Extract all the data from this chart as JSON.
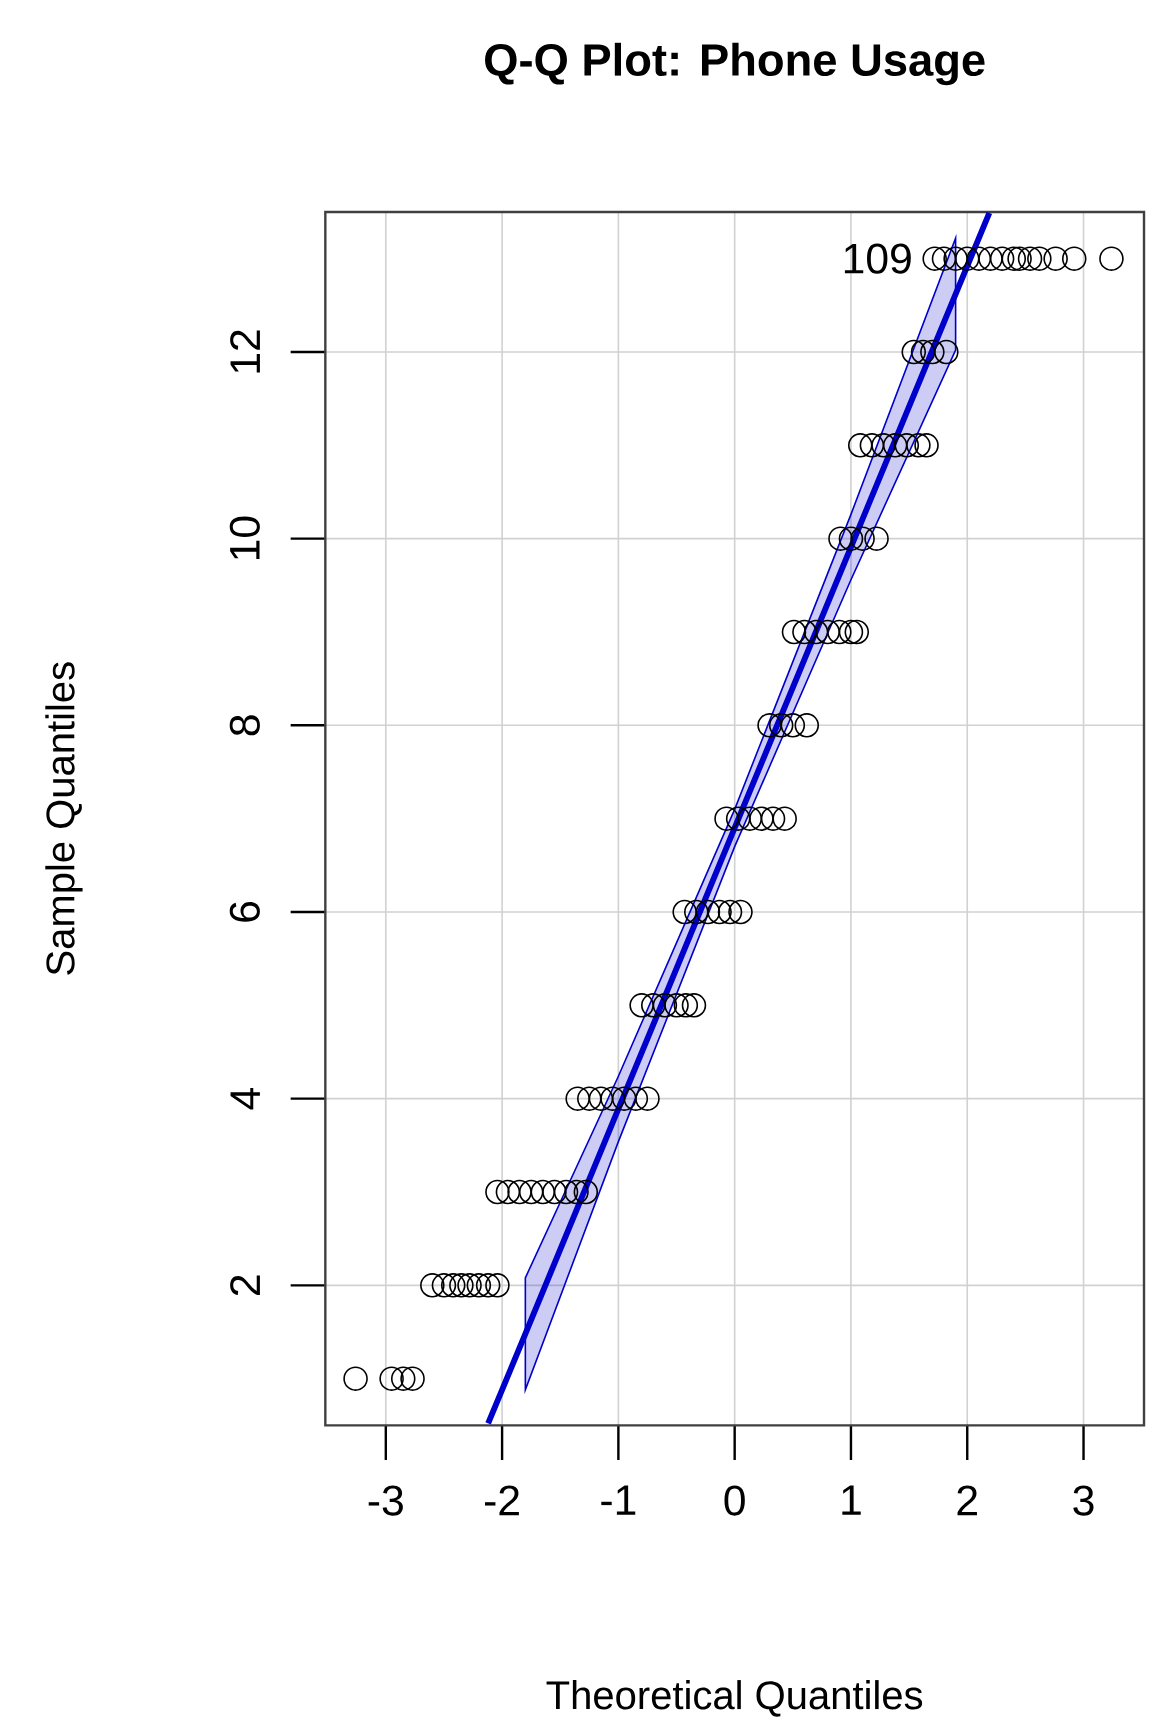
{
  "chart_data": {
    "type": "scatter",
    "title": "Q-Q Plot: Phone Usage",
    "xlabel": "Theoretical Quantiles",
    "ylabel": "Sample Quantiles",
    "xlim": [
      -3.52,
      3.52
    ],
    "ylim": [
      0.5,
      13.5
    ],
    "xticks": [
      -3,
      -2,
      -1,
      0,
      1,
      2,
      3
    ],
    "yticks": [
      2,
      4,
      6,
      8,
      10,
      12
    ],
    "grid": true,
    "annotations": [
      {
        "text": "109",
        "x": 1.72,
        "y": 13
      }
    ],
    "series": [
      {
        "marker": "circle",
        "color": "#000000",
        "x": [
          -3.26,
          -2.95,
          -2.85,
          -2.77,
          -2.6,
          -2.5,
          -2.42,
          -2.35,
          -2.28,
          -2.2,
          -2.12,
          -2.04,
          -2.04,
          -1.95,
          -1.85,
          -1.75,
          -1.65,
          -1.55,
          -1.45,
          -1.36,
          -1.28,
          -1.35,
          -1.25,
          -1.15,
          -1.05,
          -0.95,
          -0.85,
          -0.75,
          -0.8,
          -0.7,
          -0.6,
          -0.5,
          -0.42,
          -0.35,
          -0.43,
          -0.33,
          -0.23,
          -0.13,
          -0.04,
          0.05,
          -0.07,
          0.03,
          0.13,
          0.23,
          0.33,
          0.43,
          0.3,
          0.4,
          0.5,
          0.62,
          0.51,
          0.6,
          0.7,
          0.8,
          0.9,
          1.0,
          1.05,
          0.91,
          1.0,
          1.1,
          1.22,
          1.08,
          1.18,
          1.28,
          1.38,
          1.48,
          1.58,
          1.65,
          1.54,
          1.62,
          1.7,
          1.82,
          1.72,
          1.8,
          1.9,
          2.0,
          2.1,
          2.2,
          2.3,
          2.4,
          2.45,
          2.54,
          2.62,
          2.76,
          2.92,
          3.24
        ],
        "values": [
          1,
          1,
          1,
          1,
          2,
          2,
          2,
          2,
          2,
          2,
          2,
          2,
          3,
          3,
          3,
          3,
          3,
          3,
          3,
          3,
          3,
          4,
          4,
          4,
          4,
          4,
          4,
          4,
          5,
          5,
          5,
          5,
          5,
          5,
          6,
          6,
          6,
          6,
          6,
          6,
          7,
          7,
          7,
          7,
          7,
          7,
          8,
          8,
          8,
          8,
          9,
          9,
          9,
          9,
          9,
          9,
          9,
          10,
          10,
          10,
          10,
          11,
          11,
          11,
          11,
          11,
          11,
          11,
          12,
          12,
          12,
          12,
          13,
          13,
          13,
          13,
          13,
          13,
          13,
          13,
          13,
          13,
          13,
          13,
          13,
          13
        ]
      },
      {
        "type": "line",
        "color": "#0000cd",
        "x": [
          -2.12,
          -1.8,
          -1,
          0,
          1,
          1.9,
          2.19
        ],
        "values": [
          0.52,
          1.48,
          3.89,
          6.9,
          9.91,
          12.62,
          13.49
        ],
        "lower": [
          null,
          0.88,
          3.54,
          6.7,
          9.56,
          12.02,
          null
        ],
        "upper": [
          null,
          2.08,
          4.24,
          7.1,
          10.26,
          13.22,
          null
        ]
      }
    ]
  }
}
